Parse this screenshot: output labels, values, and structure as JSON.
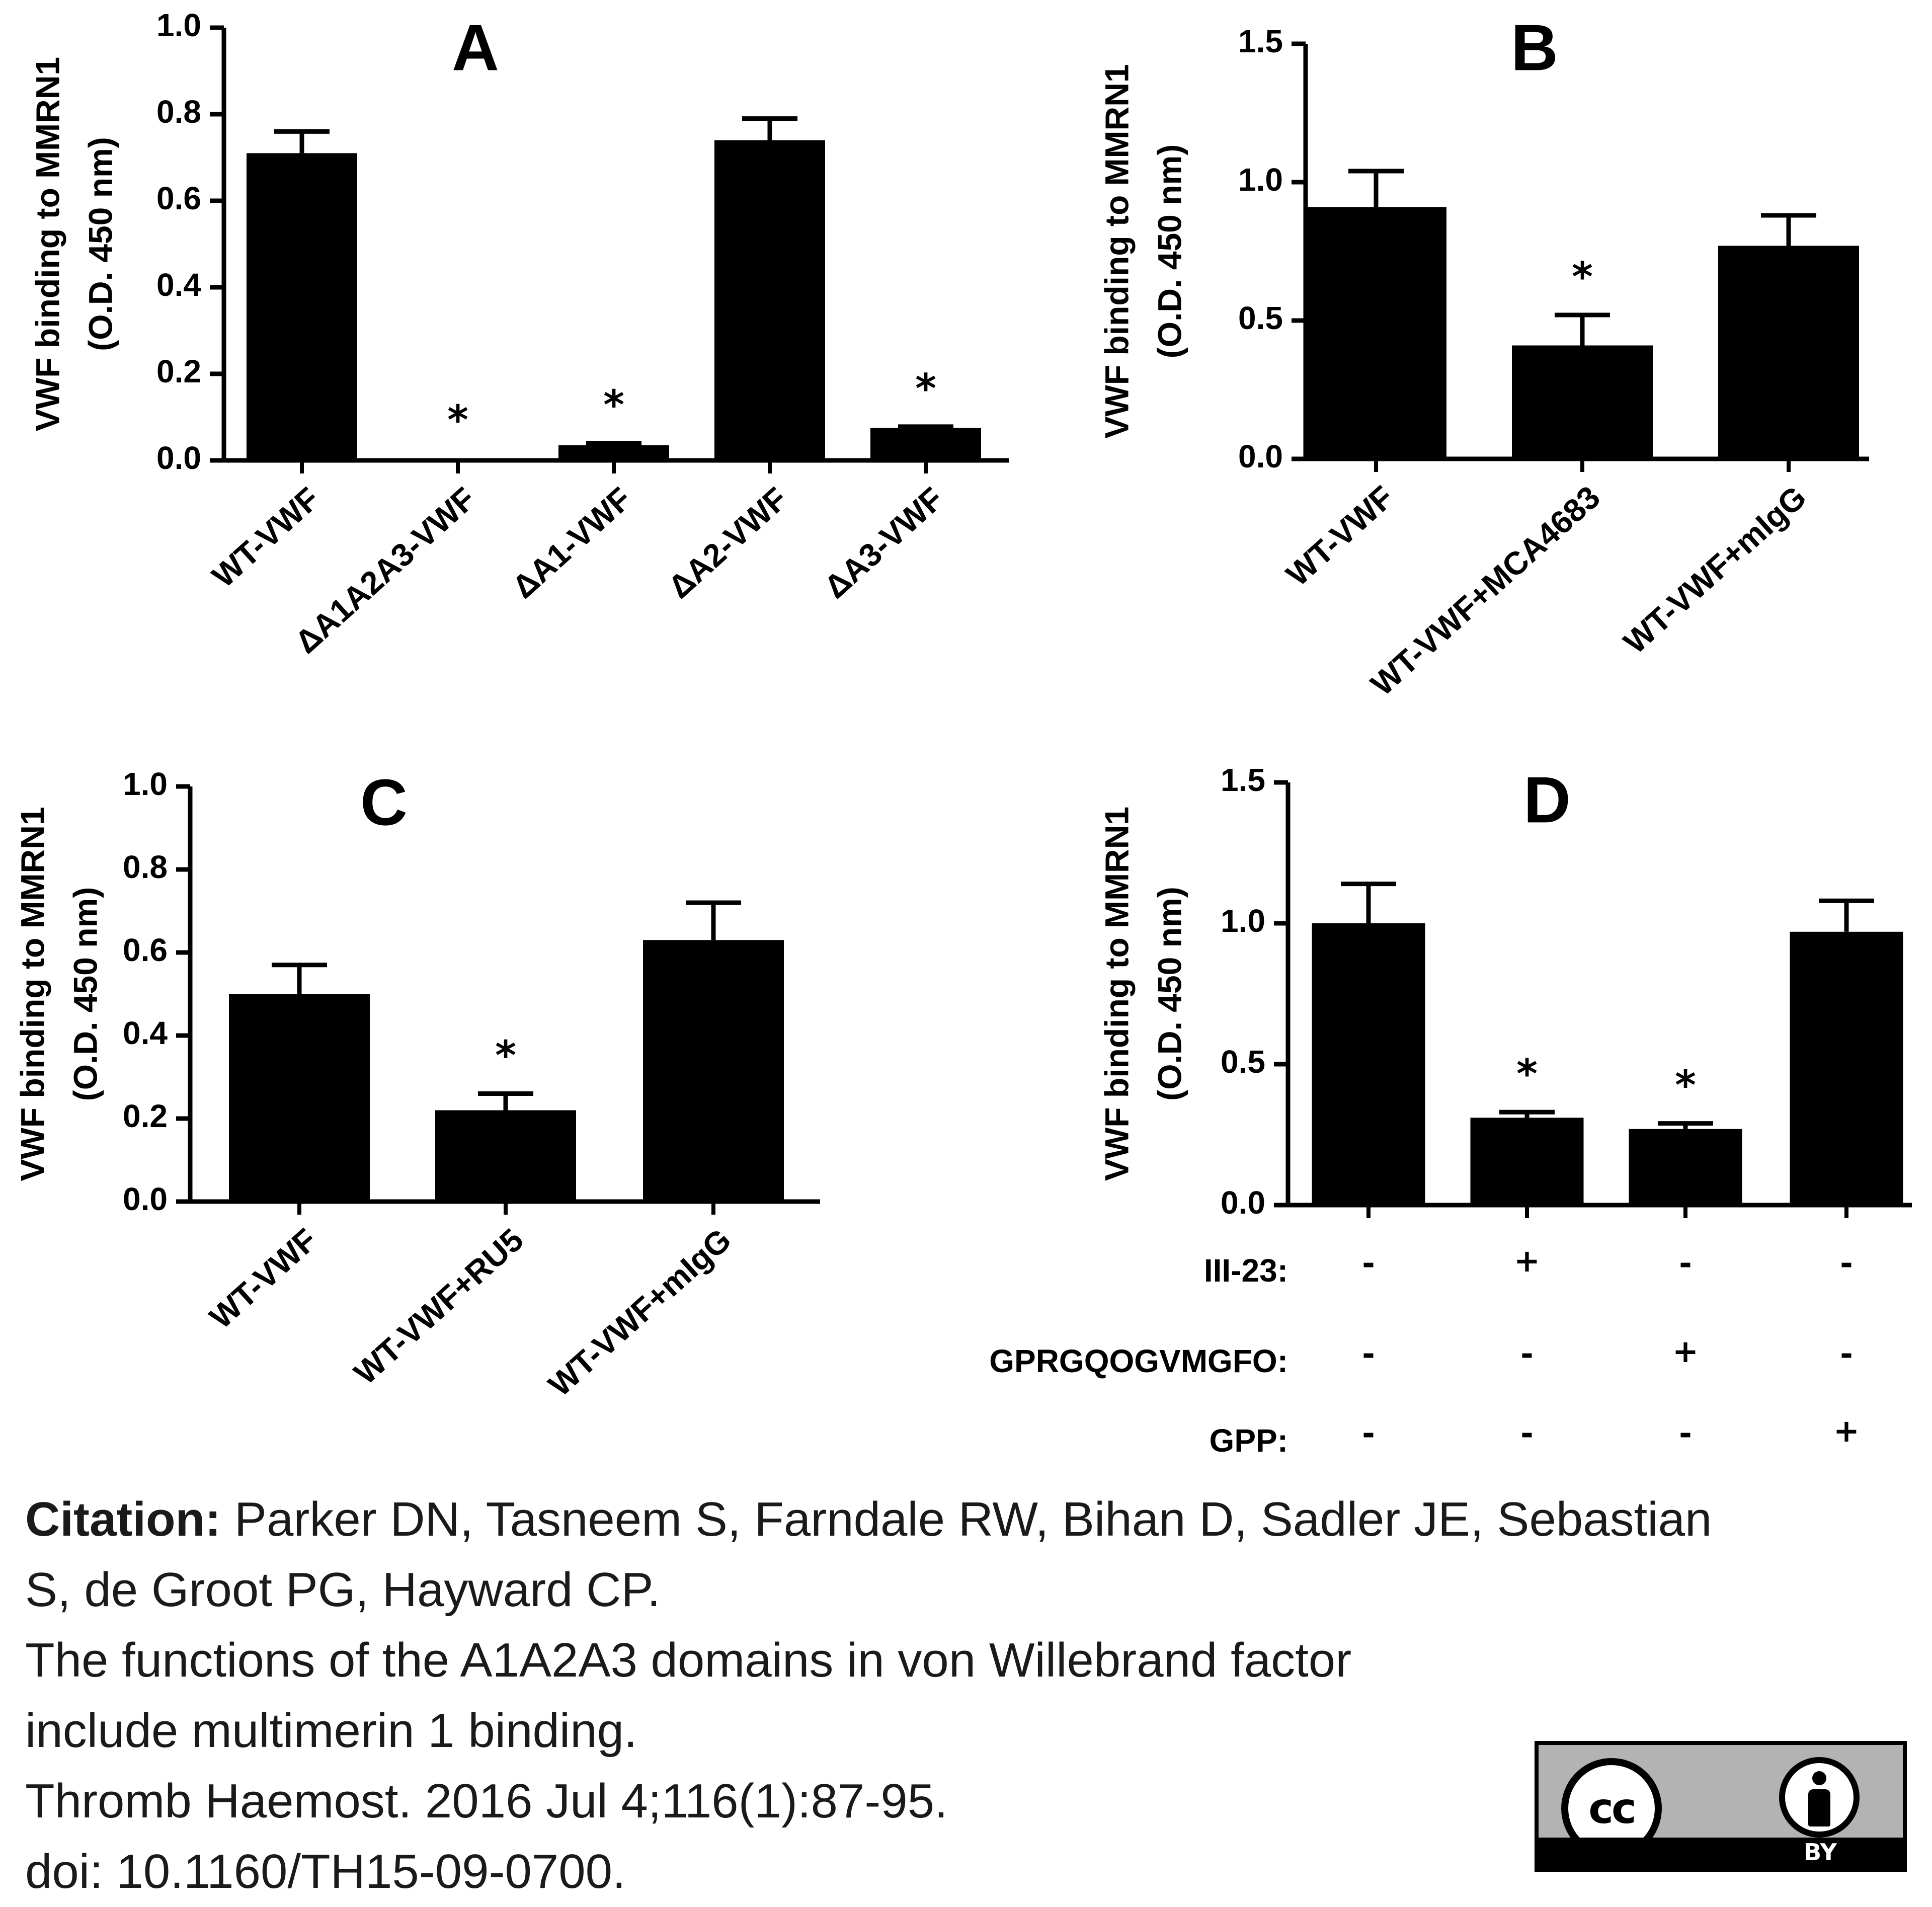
{
  "chart_data": [
    {
      "panel": "A",
      "type": "bar",
      "ylabel": [
        "VWF binding to MMRN1",
        "(O.D. 450 nm)"
      ],
      "ylim": [
        0,
        1.0
      ],
      "yticks": [
        "0.0",
        "0.2",
        "0.4",
        "0.6",
        "0.8",
        "1.0"
      ],
      "categories": [
        "WT-VWF",
        "ΔA1A2A3-VWF",
        "ΔA1-VWF",
        "ΔA2-VWF",
        "ΔA3-VWF"
      ],
      "values": [
        0.71,
        0.005,
        0.035,
        0.74,
        0.075
      ],
      "errors": [
        0.05,
        0,
        0.005,
        0.05,
        0.003
      ],
      "significance": [
        "",
        "*",
        "*",
        "",
        "*"
      ],
      "grid": false
    },
    {
      "panel": "B",
      "type": "bar",
      "ylabel": [
        "VWF binding to MMRN1",
        "(O.D. 450 nm)"
      ],
      "ylim": [
        0,
        1.5
      ],
      "yticks": [
        "0.0",
        "0.5",
        "1.0",
        "1.5"
      ],
      "categories": [
        "WT-VWF",
        "WT-VWF+MCA4683",
        "WT-VWF+mIgG"
      ],
      "values": [
        0.91,
        0.41,
        0.77
      ],
      "errors": [
        0.13,
        0.11,
        0.11
      ],
      "significance": [
        "",
        "*",
        ""
      ],
      "grid": false
    },
    {
      "panel": "C",
      "type": "bar",
      "ylabel": [
        "VWF binding to MMRN1",
        "(O.D. 450 nm)"
      ],
      "ylim": [
        0,
        1.0
      ],
      "yticks": [
        "0.0",
        "0.2",
        "0.4",
        "0.6",
        "0.8",
        "1.0"
      ],
      "categories": [
        "WT-VWF",
        "WT-VWF+RU5",
        "WT-VWF+mIgG"
      ],
      "values": [
        0.5,
        0.22,
        0.63
      ],
      "errors": [
        0.07,
        0.04,
        0.09
      ],
      "significance": [
        "",
        "*",
        ""
      ],
      "grid": false
    },
    {
      "panel": "D",
      "type": "bar",
      "ylabel": [
        "VWF binding to MMRN1",
        "(O.D. 450 nm)"
      ],
      "ylim": [
        0,
        1.5
      ],
      "yticks": [
        "0.0",
        "0.5",
        "1.0",
        "1.5"
      ],
      "categories": [
        "",
        "",
        "",
        ""
      ],
      "values": [
        1.0,
        0.31,
        0.27,
        0.97
      ],
      "errors": [
        0.14,
        0.02,
        0.02,
        0.11
      ],
      "significance": [
        "",
        "*",
        "*",
        ""
      ],
      "grid": false,
      "treatment_table": [
        {
          "label": "III-23:",
          "marks": [
            "-",
            "+",
            "-",
            "-"
          ]
        },
        {
          "label": "GPRGQOGVMGFO:",
          "marks": [
            "-",
            "-",
            "+",
            "-"
          ]
        },
        {
          "label": "GPP:",
          "marks": [
            "-",
            "-",
            "-",
            "+"
          ]
        }
      ]
    }
  ],
  "citation": {
    "label": "Citation:",
    "line1_rest": " Parker DN, Tasneem S, Farndale RW, Bihan D, Sadler JE, Sebastian",
    "line2": "S, de Groot PG, Hayward CP.",
    "line3": "The functions of the A1A2A3 domains in von Willebrand factor",
    "line4": "include multimerin 1 binding.",
    "line5": "Thromb Haemost. 2016 Jul 4;116(1):87-95.",
    "line6": "doi: 10.1160/TH15-09-0700."
  },
  "license": {
    "cc_text": "cc",
    "by_text": "BY",
    "icon": "creative-commons-by-icon",
    "badge_color": "#b3b3b3"
  }
}
